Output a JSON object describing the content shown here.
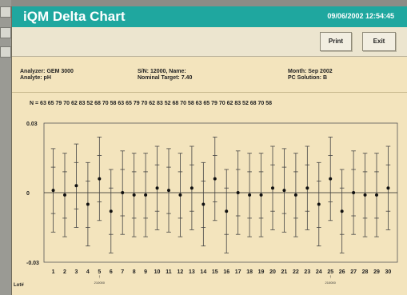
{
  "window": {
    "title": "iQM Delta Chart",
    "datetime": "09/06/2002  12:54:45"
  },
  "toolbar": {
    "print_label": "Print",
    "exit_label": "Exit"
  },
  "info": {
    "analyzer": "Analyzer: GEM 3000",
    "analyte": "Analyte: pH",
    "sn_name": "S/N:  12000,  Name:",
    "nominal_target": "Nominal Target: 7.40",
    "month": "Month: Sep  2002",
    "pc_solution": "PC Solution: B"
  },
  "chart_data": {
    "type": "scatter",
    "title": "",
    "xlabel": "",
    "ylabel": "",
    "n_label": "N =",
    "n_counts": [
      63,
      65,
      79,
      70,
      62,
      83,
      52,
      68,
      70,
      58,
      63,
      65,
      79,
      70,
      62,
      83,
      52,
      68,
      70,
      58,
      63,
      65,
      79,
      70,
      62,
      83,
      52,
      68,
      70,
      58
    ],
    "x": [
      1,
      2,
      3,
      4,
      5,
      6,
      7,
      8,
      9,
      10,
      11,
      12,
      13,
      14,
      15,
      16,
      17,
      18,
      19,
      20,
      21,
      22,
      23,
      24,
      25,
      26,
      27,
      28,
      29,
      30
    ],
    "means": [
      0.001,
      -0.001,
      0.003,
      -0.005,
      0.006,
      -0.008,
      0.0,
      -0.001,
      -0.001,
      0.002,
      0.001,
      -0.001,
      0.002,
      -0.005,
      0.006,
      -0.008,
      0.0,
      -0.001,
      -0.001,
      0.002,
      0.001,
      -0.001,
      0.002,
      -0.005,
      0.006,
      -0.008,
      0.0,
      -0.001,
      -0.001,
      0.002
    ],
    "inner_halfwidth": 0.01,
    "outer_halfwidth": 0.018,
    "ylim": [
      -0.03,
      0.03
    ],
    "y_tick_labels": [
      "0.03",
      "0",
      "-0.03"
    ],
    "y_ticks": [
      0.03,
      0,
      -0.03
    ],
    "grid": false,
    "lot_label": "Lot#",
    "lot_markers": [
      {
        "x": 5,
        "label": "210000"
      },
      {
        "x": 25,
        "label": "210000"
      }
    ]
  }
}
